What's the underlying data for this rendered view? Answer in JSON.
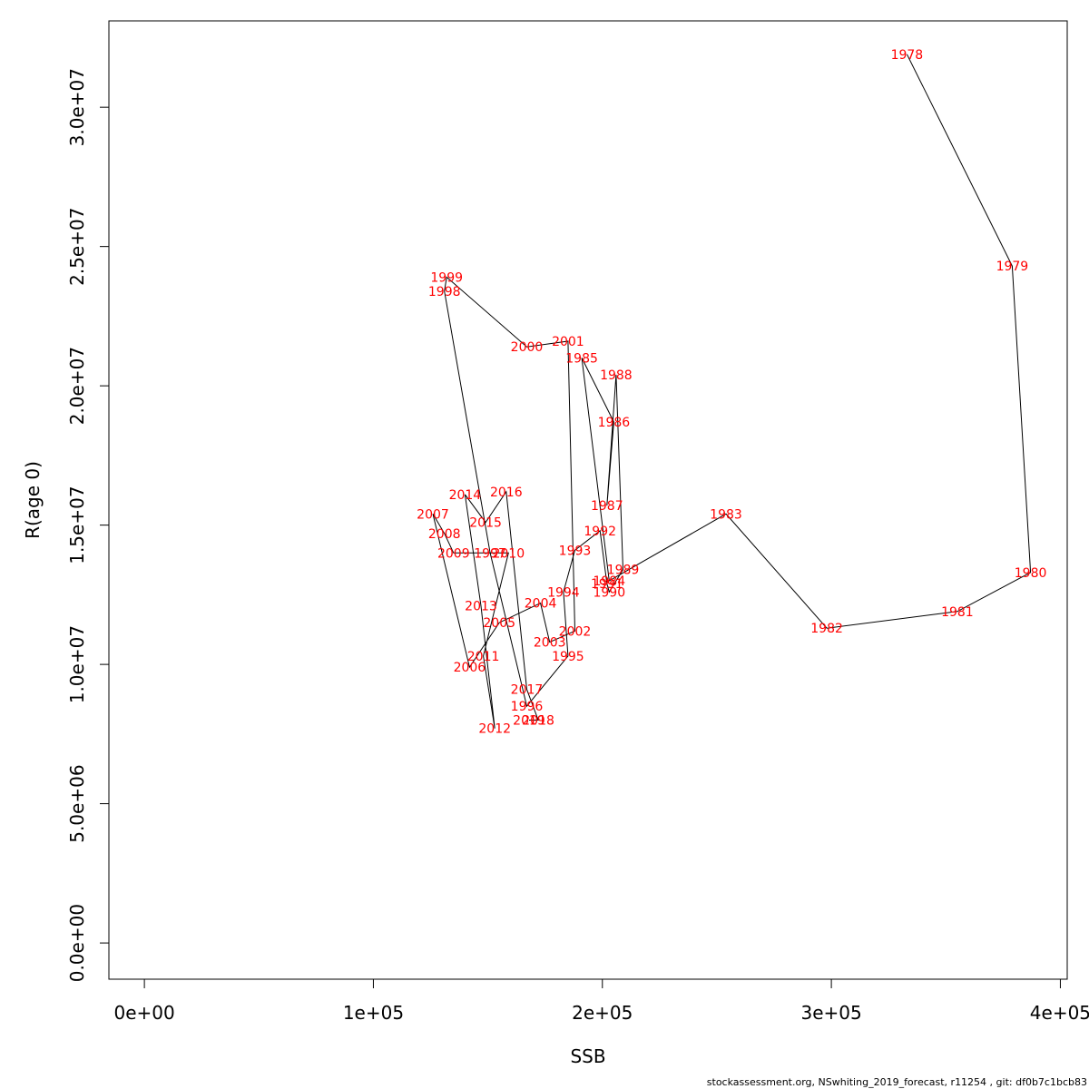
{
  "chart_data": {
    "type": "line",
    "title": "",
    "xlabel": "SSB",
    "ylabel": "R(age 0)",
    "xlim": [
      -15500,
      403000
    ],
    "ylim": [
      -1300000,
      33100000
    ],
    "x_ticks": [
      0,
      100000,
      200000,
      300000,
      400000
    ],
    "x_tick_labels": [
      "0e+00",
      "1e+05",
      "2e+05",
      "3e+05",
      "4e+05"
    ],
    "y_ticks": [
      0,
      5000000,
      10000000,
      15000000,
      20000000,
      25000000,
      30000000
    ],
    "y_tick_labels": [
      "0.0e+00",
      "5.0e+06",
      "1.0e+07",
      "1.5e+07",
      "2.0e+07",
      "2.5e+07",
      "3.0e+07"
    ],
    "grid": false,
    "legend": "none",
    "point_label_color": "#ff0000",
    "line_color": "#000000",
    "points": [
      {
        "year": "1978",
        "x": 333000,
        "y": 31900000
      },
      {
        "year": "1979",
        "x": 379000,
        "y": 24300000
      },
      {
        "year": "1980",
        "x": 387000,
        "y": 13300000
      },
      {
        "year": "1981",
        "x": 355000,
        "y": 11900000
      },
      {
        "year": "1982",
        "x": 298000,
        "y": 11300000
      },
      {
        "year": "1983",
        "x": 254000,
        "y": 15400000
      },
      {
        "year": "1984",
        "x": 203000,
        "y": 13000000
      },
      {
        "year": "1985",
        "x": 191000,
        "y": 21000000
      },
      {
        "year": "1986",
        "x": 205000,
        "y": 18700000
      },
      {
        "year": "1987",
        "x": 202000,
        "y": 15700000
      },
      {
        "year": "1988",
        "x": 206000,
        "y": 20400000
      },
      {
        "year": "1989",
        "x": 209000,
        "y": 13400000
      },
      {
        "year": "1990",
        "x": 203000,
        "y": 12600000
      },
      {
        "year": "1991",
        "x": 202000,
        "y": 12900000
      },
      {
        "year": "1992",
        "x": 199000,
        "y": 14800000
      },
      {
        "year": "1993",
        "x": 188000,
        "y": 14100000
      },
      {
        "year": "1994",
        "x": 183000,
        "y": 12600000
      },
      {
        "year": "1995",
        "x": 185000,
        "y": 10300000
      },
      {
        "year": "1996",
        "x": 167000,
        "y": 8500000
      },
      {
        "year": "1997",
        "x": 151000,
        "y": 14000000
      },
      {
        "year": "1998",
        "x": 131000,
        "y": 23400000
      },
      {
        "year": "1999",
        "x": 132000,
        "y": 23900000
      },
      {
        "year": "2000",
        "x": 167000,
        "y": 21400000
      },
      {
        "year": "2001",
        "x": 185000,
        "y": 21600000
      },
      {
        "year": "2002",
        "x": 188000,
        "y": 11200000
      },
      {
        "year": "2003",
        "x": 177000,
        "y": 10800000
      },
      {
        "year": "2004",
        "x": 173000,
        "y": 12200000
      },
      {
        "year": "2005",
        "x": 155000,
        "y": 11500000
      },
      {
        "year": "2006",
        "x": 142000,
        "y": 9900000
      },
      {
        "year": "2007",
        "x": 126000,
        "y": 15400000
      },
      {
        "year": "2008",
        "x": 131000,
        "y": 14700000
      },
      {
        "year": "2009",
        "x": 135000,
        "y": 14000000
      },
      {
        "year": "2010",
        "x": 159000,
        "y": 14000000
      },
      {
        "year": "2011",
        "x": 148000,
        "y": 10300000
      },
      {
        "year": "2012",
        "x": 153000,
        "y": 7700000
      },
      {
        "year": "2013",
        "x": 147000,
        "y": 12100000
      },
      {
        "year": "2014",
        "x": 140000,
        "y": 16100000
      },
      {
        "year": "2015",
        "x": 149000,
        "y": 15100000
      },
      {
        "year": "2016",
        "x": 158000,
        "y": 16200000
      },
      {
        "year": "2017",
        "x": 167000,
        "y": 9100000
      },
      {
        "year": "2018",
        "x": 172000,
        "y": 8000000
      },
      {
        "year": "2019",
        "x": 168000,
        "y": 8000000
      }
    ]
  },
  "footer": {
    "text": "stockassessment.org, NSwhiting_2019_forecast, r11254 , git: df0b7c1bcb83"
  }
}
